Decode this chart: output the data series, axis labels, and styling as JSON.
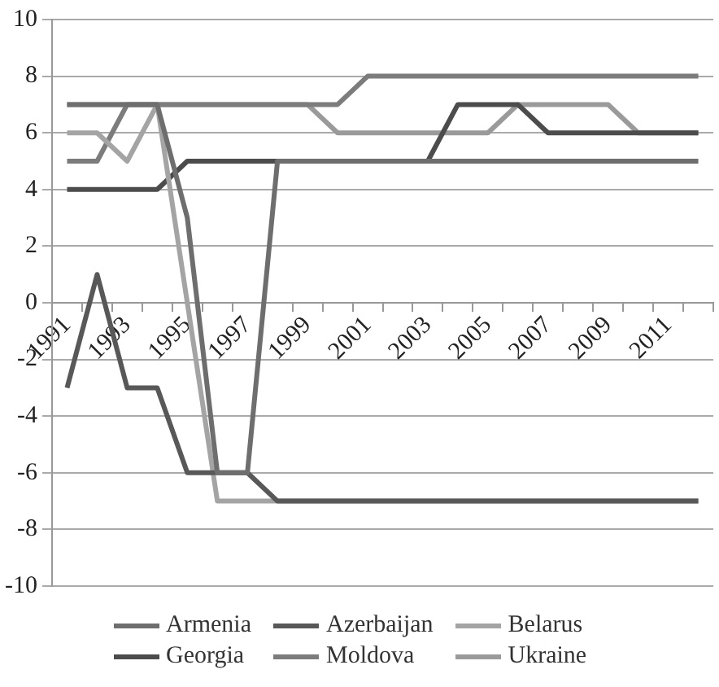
{
  "chart_data": {
    "type": "line",
    "categories": [
      "1991",
      null,
      "1993",
      null,
      "1995",
      null,
      "1997",
      null,
      "1999",
      null,
      "2001",
      null,
      "2003",
      null,
      "2005",
      null,
      "2007",
      null,
      "2009",
      null,
      "2011",
      null
    ],
    "series": [
      {
        "name": "Armenia",
        "color": "#6e6e6e",
        "values": [
          7,
          7,
          7,
          7,
          3,
          -6,
          -6,
          5,
          5,
          5,
          5,
          5,
          5,
          5,
          5,
          5,
          5,
          5,
          5,
          5,
          5,
          5
        ]
      },
      {
        "name": "Azerbaijan",
        "color": "#585858",
        "values": [
          -3,
          1,
          -3,
          -3,
          -6,
          -6,
          -6,
          -7,
          -7,
          -7,
          -7,
          -7,
          -7,
          -7,
          -7,
          -7,
          -7,
          -7,
          -7,
          -7,
          -7,
          -7
        ]
      },
      {
        "name": "Belarus",
        "color": "#a4a4a4",
        "values": [
          6,
          6,
          5,
          7,
          0,
          -7,
          -7,
          -7,
          -7,
          -7,
          -7,
          -7,
          -7,
          -7,
          -7,
          -7,
          -7,
          -7,
          -7,
          -7,
          -7,
          -7
        ]
      },
      {
        "name": "Georgia",
        "color": "#4c4c4c",
        "values": [
          4,
          4,
          4,
          4,
          5,
          5,
          5,
          5,
          5,
          5,
          5,
          5,
          5,
          7,
          7,
          7,
          6,
          6,
          6,
          6,
          6,
          6
        ]
      },
      {
        "name": "Moldova",
        "color": "#7c7c7c",
        "values": [
          5,
          5,
          7,
          7,
          7,
          7,
          7,
          7,
          7,
          7,
          8,
          8,
          8,
          8,
          8,
          8,
          8,
          8,
          8,
          8,
          8,
          8
        ]
      },
      {
        "name": "Ukraine",
        "color": "#9a9a9a",
        "values": [
          7,
          7,
          7,
          7,
          7,
          7,
          7,
          7,
          7,
          6,
          6,
          6,
          6,
          6,
          6,
          7,
          7,
          7,
          7,
          6,
          6,
          6
        ]
      }
    ],
    "ylim": [
      -10,
      10
    ],
    "yticks": [
      -10,
      -8,
      -6,
      -4,
      -2,
      0,
      2,
      4,
      6,
      8,
      10
    ],
    "grid": "y",
    "legend": "bottom",
    "marker": "none",
    "line_style": "solid"
  }
}
